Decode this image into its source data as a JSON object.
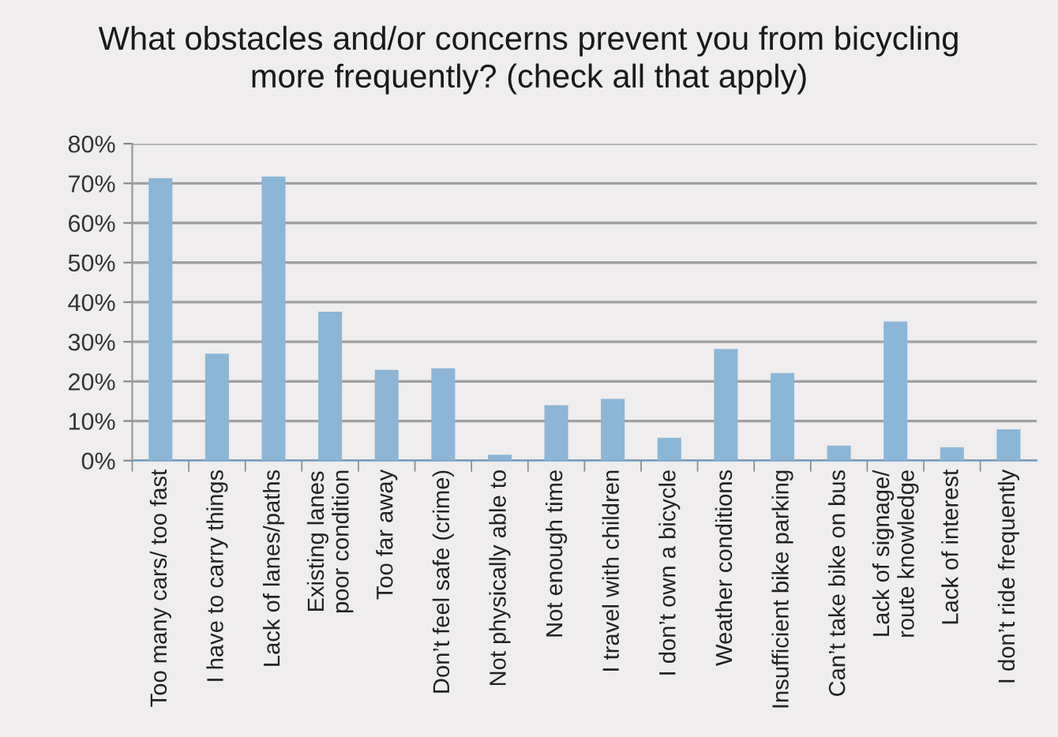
{
  "chart_data": {
    "type": "bar",
    "title": "What obstacles and/or concerns prevent you from bicycling\nmore frequently? (check all that apply)",
    "categories": [
      "Too many cars/ too fast",
      "I have to carry things",
      "Lack of lanes/paths",
      "Existing lanes\npoor condition",
      "Too far away",
      "Don’t feel safe (crime)",
      "Not physically able to",
      "Not enough time",
      "I travel with children",
      "I don’t own a bicycle",
      "Weather conditions",
      "Insufficient bike parking",
      "Can’t take bike on bus",
      "Lack of signage/\nroute knowledge",
      "Lack of interest",
      "I don’t ride frequently"
    ],
    "values": [
      71.3,
      27.0,
      71.7,
      37.6,
      22.9,
      23.3,
      1.5,
      14.0,
      15.6,
      5.8,
      28.2,
      22.1,
      3.8,
      35.1,
      3.4,
      7.9
    ],
    "color": "#8cb6d6",
    "ylim": [
      0,
      80
    ],
    "yticks": [
      {
        "value": 0,
        "label": "0%"
      },
      {
        "value": 10,
        "label": "10%"
      },
      {
        "value": 20,
        "label": "20%"
      },
      {
        "value": 30,
        "label": "30%"
      },
      {
        "value": 40,
        "label": "40%"
      },
      {
        "value": 50,
        "label": "50%"
      },
      {
        "value": 60,
        "label": "60%"
      },
      {
        "value": 70,
        "label": "70%"
      },
      {
        "value": 80,
        "label": "80%"
      }
    ],
    "grid": "y"
  }
}
